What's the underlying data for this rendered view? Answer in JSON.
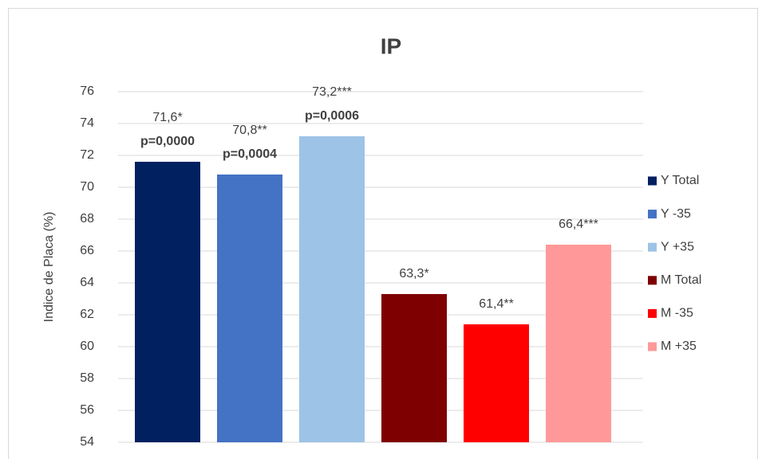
{
  "chart_data": {
    "type": "bar",
    "title": "IP",
    "y_label": "Indice de Placa (%)",
    "categories": [
      null
    ],
    "series": [
      {
        "name": "Y Total",
        "color": "#002060",
        "values": [
          71.6
        ],
        "value_labels": [
          "71,6*"
        ],
        "p_label": "p=0,0000"
      },
      {
        "name": "Y -35",
        "color": "#4472c4",
        "values": [
          70.8
        ],
        "value_labels": [
          "70,8**"
        ],
        "p_label": "p=0,0004"
      },
      {
        "name": "Y +35",
        "color": "#9dc3e6",
        "values": [
          73.2
        ],
        "value_labels": [
          "73,2***"
        ],
        "p_label": "p=0,0006"
      },
      {
        "name": "M Total",
        "color": "#7f0000",
        "values": [
          63.3
        ],
        "value_labels": [
          "63,3*"
        ]
      },
      {
        "name": "M -35",
        "color": "#ff0000",
        "values": [
          61.4
        ],
        "value_labels": [
          "61,4**"
        ]
      },
      {
        "name": "M +35",
        "color": "#ff9999",
        "values": [
          66.4
        ],
        "value_labels": [
          "66,4***"
        ]
      }
    ],
    "ylim": [
      54,
      76
    ],
    "yticks": [
      54,
      56,
      58,
      60,
      62,
      64,
      66,
      68,
      70,
      72,
      74,
      76
    ],
    "grid": true,
    "legend": "right"
  }
}
